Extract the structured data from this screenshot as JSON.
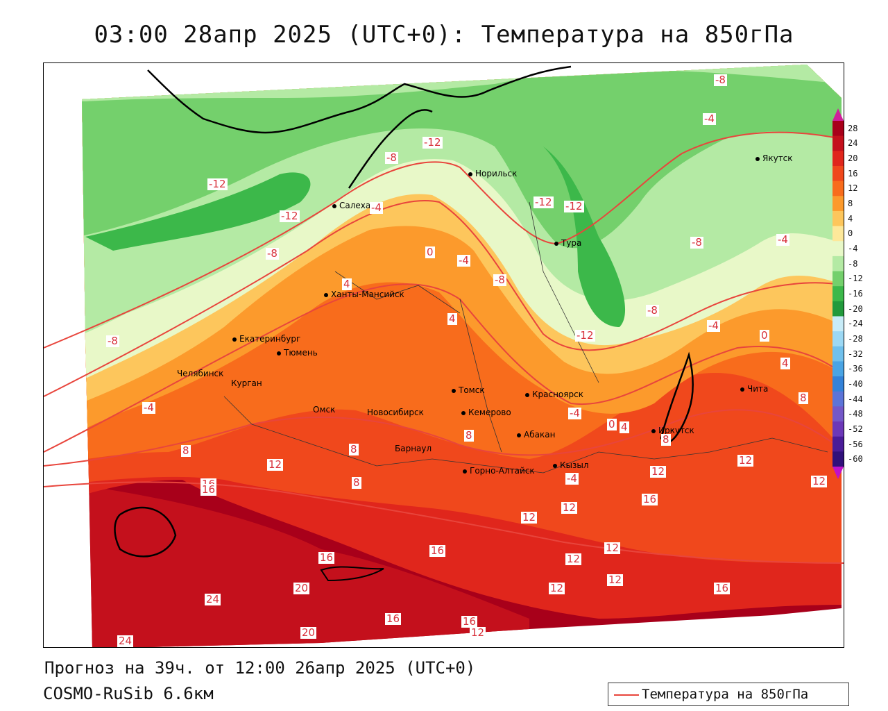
{
  "title": "03:00 28апр 2025 (UTC+0): Температура на 850гПа",
  "footer": {
    "forecast": "Прогноз на 39ч. от 12:00 26апр 2025 (UTC+0)",
    "model": "COSMO-RuSib 6.6км"
  },
  "legend": {
    "label": "Температура на 850гПа",
    "line_color": "#e8453c"
  },
  "colorbar": {
    "labels": [
      "28",
      "24",
      "20",
      "16",
      "12",
      "8",
      "4",
      "0",
      "-4",
      "-8",
      "-12",
      "-16",
      "-20",
      "-24",
      "-28",
      "-32",
      "-36",
      "-40",
      "-44",
      "-48",
      "-52",
      "-56",
      "-60"
    ],
    "colors": [
      "#a8001a",
      "#c4101c",
      "#e0261c",
      "#f0481c",
      "#f86c1c",
      "#fc9a2c",
      "#fdc65c",
      "#fde89a",
      "#e8f8c8",
      "#b4eaa4",
      "#74d06c",
      "#3cb84a",
      "#229a3c",
      "#c8ecf8",
      "#9cd8f4",
      "#70c0ec",
      "#4aa4e4",
      "#3482d8",
      "#5c74d8",
      "#7458c8",
      "#6c38b8",
      "#4a1c98",
      "#30107a"
    ]
  },
  "cities": [
    {
      "name": "Якутск"
    },
    {
      "name": "Норильск"
    },
    {
      "name": "Салехард"
    },
    {
      "name": "Тура"
    },
    {
      "name": "Ханты-Мансийск"
    },
    {
      "name": "Екатеринбург"
    },
    {
      "name": "Тюмень"
    },
    {
      "name": "Челябинск"
    },
    {
      "name": "Курган"
    },
    {
      "name": "Томск"
    },
    {
      "name": "Красноярск"
    },
    {
      "name": "Омск"
    },
    {
      "name": "Новосибирск"
    },
    {
      "name": "Кемерово"
    },
    {
      "name": "Абакан"
    },
    {
      "name": "Иркутск"
    },
    {
      "name": "Чита"
    },
    {
      "name": "Барнаул"
    },
    {
      "name": "Горно-Алтайск"
    },
    {
      "name": "Кызыл"
    }
  ],
  "isotherm_labels": [
    "-8",
    "-4",
    "-12",
    "-12",
    "-8",
    "-12",
    "-12",
    "-12",
    "-4",
    "-4",
    "-8",
    "-8",
    "-8",
    "-4",
    "-8",
    "-12",
    "-8",
    "-4",
    "0",
    "4",
    "4",
    "0",
    "4",
    "-4",
    "8",
    "8",
    "-4",
    "0",
    "4",
    "8",
    "-4",
    "12",
    "8",
    "8",
    "16",
    "12",
    "8",
    "12",
    "12",
    "12",
    "16",
    "12",
    "16",
    "12",
    "16",
    "12",
    "12",
    "16",
    "16",
    "20",
    "24",
    "24",
    "16",
    "20",
    "16",
    "12",
    "12"
  ]
}
